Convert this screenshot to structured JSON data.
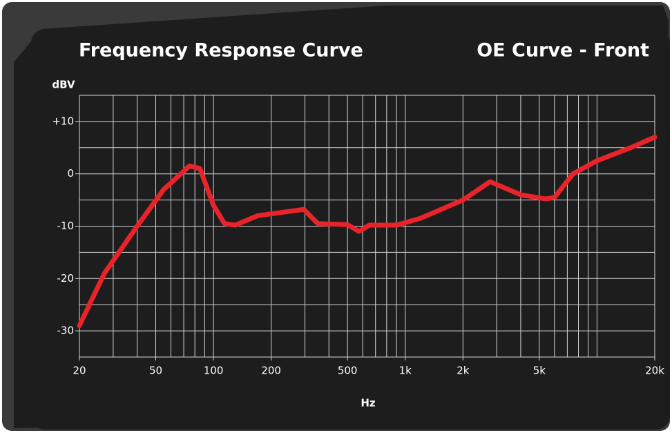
{
  "chart_data": {
    "type": "line",
    "title": "Frequency Response Curve",
    "subtitle": "OE Curve - Front",
    "y_label": "dBV",
    "x_label": "Hz",
    "x_log": true,
    "grid": true,
    "xlim": [
      20,
      20000
    ],
    "ylim": [
      -35,
      15
    ],
    "xticks": [
      20,
      50,
      100,
      200,
      500,
      {
        "value": 1000,
        "label": "1k"
      },
      {
        "value": 2000,
        "label": "2k"
      },
      {
        "value": 5000,
        "label": "5k"
      },
      {
        "value": 20000,
        "label": "20k"
      }
    ],
    "yticks": [
      {
        "value": 10,
        "label": "+10"
      },
      0,
      -10,
      -20,
      -30
    ],
    "xgrid": [
      20,
      30,
      40,
      50,
      60,
      70,
      80,
      90,
      100,
      200,
      300,
      400,
      500,
      600,
      700,
      800,
      900,
      1000,
      2000,
      3000,
      4000,
      5000,
      6000,
      7000,
      8000,
      9000,
      10000,
      20000
    ],
    "ygrid": [
      -35,
      -30,
      -25,
      -20,
      -15,
      -10,
      -5,
      0,
      5,
      10,
      15
    ],
    "series": [
      {
        "name": "OE Curve - Front",
        "color": "#e8232a",
        "x": [
          20,
          27,
          40,
          55,
          75,
          85,
          100,
          114,
          130,
          170,
          296,
          350,
          500,
          574,
          650,
          900,
          1200,
          2000,
          2770,
          4000,
          5400,
          6000,
          7500,
          10000,
          15000,
          20000
        ],
        "values": [
          -29,
          -19,
          -10,
          -3,
          1.5,
          1,
          -6,
          -9.5,
          -9.8,
          -8,
          -6.8,
          -9.5,
          -9.7,
          -11,
          -9.8,
          -9.8,
          -8.5,
          -5,
          -1.5,
          -4,
          -4.8,
          -4.5,
          0,
          2.5,
          5,
          7
        ]
      }
    ]
  }
}
